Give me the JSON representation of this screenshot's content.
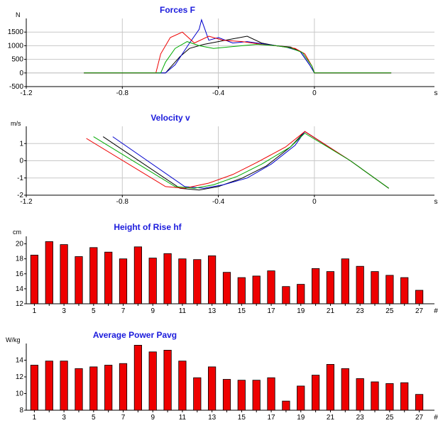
{
  "colors": {
    "title": "#1a1adc",
    "bar_fill": "#ee0000",
    "bar_edge": "#000000",
    "grid": "#c8c8c8",
    "trace_palette": [
      "#000000",
      "#0000cc",
      "#ee0000",
      "#00aa00"
    ]
  },
  "chart_data": [
    {
      "id": "forces",
      "type": "line",
      "title": "Forces F",
      "ylabel": "N",
      "xlabel": "s",
      "xlim": [
        -1.2,
        0.5
      ],
      "ylim": [
        -500,
        2000
      ],
      "xticks": [
        -1.2,
        -0.8,
        -0.4,
        0
      ],
      "xtick_labels": [
        "-1.2",
        "-0.8",
        "-0.4",
        "0"
      ],
      "yticks": [
        -500,
        0,
        500,
        1000,
        1500
      ],
      "ytick_labels": [
        "-500",
        "0",
        "500",
        "1000",
        "1500"
      ],
      "grid": true,
      "series": [
        {
          "color": "#000000",
          "x": [
            -0.96,
            -0.62,
            -0.6,
            -0.56,
            -0.52,
            -0.46,
            -0.4,
            -0.34,
            -0.28,
            -0.22,
            -0.16,
            -0.1,
            -0.06,
            -0.02,
            0.0,
            0.32
          ],
          "y": [
            0,
            0,
            200,
            600,
            900,
            1050,
            1150,
            1250,
            1350,
            1100,
            1000,
            950,
            800,
            300,
            0,
            0
          ]
        },
        {
          "color": "#0000cc",
          "x": [
            -0.96,
            -0.62,
            -0.58,
            -0.52,
            -0.48,
            -0.47,
            -0.44,
            -0.4,
            -0.34,
            -0.28,
            -0.2,
            -0.12,
            -0.06,
            -0.02,
            0.0,
            0.32
          ],
          "y": [
            0,
            0,
            300,
            1100,
            1600,
            1950,
            1200,
            1300,
            1100,
            1150,
            1050,
            950,
            800,
            300,
            0,
            0
          ]
        },
        {
          "color": "#ee0000",
          "x": [
            -0.96,
            -0.66,
            -0.64,
            -0.6,
            -0.55,
            -0.5,
            -0.44,
            -0.38,
            -0.3,
            -0.22,
            -0.14,
            -0.08,
            -0.04,
            -0.01,
            0.0,
            0.32
          ],
          "y": [
            0,
            0,
            700,
            1300,
            1500,
            1100,
            1350,
            1200,
            1150,
            1050,
            980,
            900,
            700,
            250,
            0,
            0
          ]
        },
        {
          "color": "#00aa00",
          "x": [
            -0.96,
            -0.64,
            -0.62,
            -0.58,
            -0.53,
            -0.48,
            -0.42,
            -0.36,
            -0.3,
            -0.24,
            -0.16,
            -0.1,
            -0.05,
            -0.01,
            0.0,
            0.32
          ],
          "y": [
            0,
            0,
            400,
            900,
            1150,
            1000,
            900,
            950,
            1000,
            1050,
            1000,
            920,
            750,
            250,
            0,
            0
          ]
        }
      ]
    },
    {
      "id": "velocity",
      "type": "line",
      "title": "Velocity v",
      "ylabel": "m/s",
      "xlabel": "s",
      "xlim": [
        -1.2,
        0.5
      ],
      "ylim": [
        -2,
        2
      ],
      "xticks": [
        -1.2,
        -0.8,
        -0.4,
        0
      ],
      "xtick_labels": [
        "-1.2",
        "-0.8",
        "-0.4",
        "0"
      ],
      "yticks": [
        -2,
        -1,
        0,
        1
      ],
      "ytick_labels": [
        "-2",
        "-1",
        "0",
        "1"
      ],
      "grid": true,
      "series": [
        {
          "color": "#000000",
          "x": [
            -0.88,
            -0.56,
            -0.48,
            -0.4,
            -0.3,
            -0.2,
            -0.1,
            -0.04,
            0.15,
            0.31
          ],
          "y": [
            1.4,
            -1.6,
            -1.7,
            -1.5,
            -1.0,
            -0.3,
            0.8,
            1.7,
            0.0,
            -1.6
          ]
        },
        {
          "color": "#0000cc",
          "x": [
            -0.84,
            -0.54,
            -0.46,
            -0.38,
            -0.28,
            -0.18,
            -0.08,
            -0.04,
            0.15,
            0.31
          ],
          "y": [
            1.4,
            -1.5,
            -1.6,
            -1.4,
            -1.0,
            -0.2,
            0.9,
            1.7,
            0.0,
            -1.6
          ]
        },
        {
          "color": "#ee0000",
          "x": [
            -0.95,
            -0.62,
            -0.54,
            -0.44,
            -0.34,
            -0.24,
            -0.12,
            -0.04,
            0.15,
            0.31
          ],
          "y": [
            1.3,
            -1.5,
            -1.6,
            -1.3,
            -0.8,
            -0.1,
            0.8,
            1.7,
            0.0,
            -1.6
          ]
        },
        {
          "color": "#00aa00",
          "x": [
            -0.92,
            -0.58,
            -0.5,
            -0.42,
            -0.32,
            -0.22,
            -0.1,
            -0.04,
            0.15,
            0.31
          ],
          "y": [
            1.4,
            -1.5,
            -1.6,
            -1.4,
            -0.9,
            -0.2,
            0.8,
            1.6,
            0.0,
            -1.6
          ]
        }
      ]
    },
    {
      "id": "height",
      "type": "bar",
      "title": "Height of Rise hf",
      "ylabel": "cm",
      "xlabel": "#",
      "ylim": [
        12,
        21
      ],
      "yticks": [
        12,
        14,
        16,
        18,
        20
      ],
      "ytick_labels": [
        "12",
        "14",
        "16",
        "18",
        "20"
      ],
      "xtick_labels": [
        "1",
        "3",
        "5",
        "7",
        "9",
        "11",
        "13",
        "15",
        "17",
        "19",
        "21",
        "23",
        "25",
        "27"
      ],
      "grid": false,
      "categories": [
        1,
        2,
        3,
        4,
        5,
        6,
        7,
        8,
        9,
        10,
        11,
        12,
        13,
        14,
        15,
        16,
        17,
        18,
        19,
        20,
        21,
        22,
        23,
        24,
        25,
        26,
        27
      ],
      "values": [
        18.5,
        20.3,
        19.9,
        18.3,
        19.5,
        18.9,
        18.0,
        19.6,
        18.1,
        18.7,
        18.0,
        17.9,
        18.4,
        16.2,
        15.5,
        15.7,
        16.4,
        14.3,
        14.6,
        16.7,
        16.3,
        18.0,
        17.0,
        16.3,
        15.8,
        15.5,
        13.8
      ]
    },
    {
      "id": "power",
      "type": "bar",
      "title": "Average Power Pavg",
      "ylabel": "W/kg",
      "xlabel": "#",
      "ylim": [
        8,
        16
      ],
      "yticks": [
        8,
        10,
        12,
        14
      ],
      "ytick_labels": [
        "8",
        "10",
        "12",
        "14"
      ],
      "xtick_labels": [
        "1",
        "3",
        "5",
        "7",
        "9",
        "11",
        "13",
        "15",
        "17",
        "19",
        "21",
        "23",
        "25",
        "27"
      ],
      "grid": false,
      "categories": [
        1,
        2,
        3,
        4,
        5,
        6,
        7,
        8,
        9,
        10,
        11,
        12,
        13,
        14,
        15,
        16,
        17,
        18,
        19,
        20,
        21,
        22,
        23,
        24,
        25,
        26,
        27
      ],
      "values": [
        13.4,
        13.9,
        13.9,
        13.0,
        13.2,
        13.4,
        13.6,
        15.8,
        15.0,
        15.2,
        13.9,
        11.9,
        13.2,
        11.7,
        11.6,
        11.6,
        11.9,
        9.1,
        10.9,
        12.2,
        13.5,
        13.0,
        11.8,
        11.4,
        11.2,
        11.3,
        9.9
      ]
    }
  ]
}
